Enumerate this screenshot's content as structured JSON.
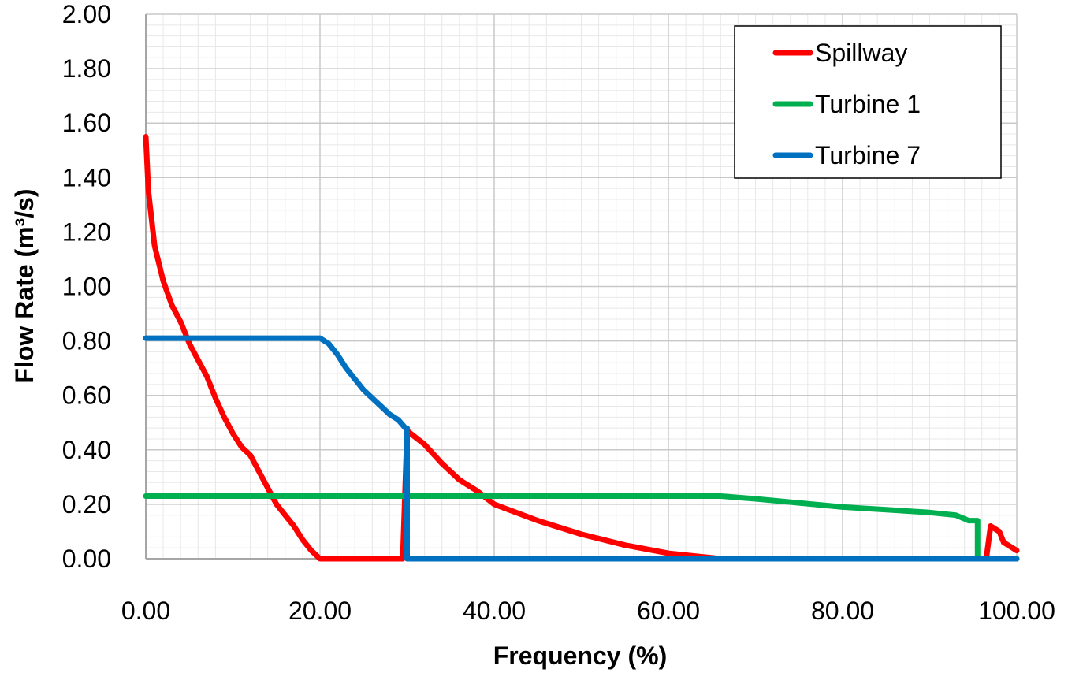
{
  "chart_data": {
    "type": "line",
    "title": "",
    "xlabel": "Frequency (%)",
    "ylabel": "Flow Rate (m³/s)",
    "xlim": [
      0,
      100
    ],
    "ylim": [
      0,
      2.0
    ],
    "grid": true,
    "legend_position": "top-right",
    "x_ticks": [
      "0.00",
      "20.00",
      "40.00",
      "60.00",
      "80.00",
      "100.00"
    ],
    "y_ticks": [
      "0.00",
      "0.20",
      "0.40",
      "0.60",
      "0.80",
      "1.00",
      "1.20",
      "1.40",
      "1.60",
      "1.80",
      "2.00"
    ],
    "series": [
      {
        "name": "Spillway",
        "color": "#FF0000",
        "points": [
          [
            0,
            1.55
          ],
          [
            0.3,
            1.35
          ],
          [
            1,
            1.15
          ],
          [
            2,
            1.02
          ],
          [
            3,
            0.93
          ],
          [
            4,
            0.87
          ],
          [
            5,
            0.79
          ],
          [
            6,
            0.73
          ],
          [
            7,
            0.67
          ],
          [
            8,
            0.59
          ],
          [
            9,
            0.52
          ],
          [
            10,
            0.46
          ],
          [
            11,
            0.41
          ],
          [
            12,
            0.38
          ],
          [
            13,
            0.32
          ],
          [
            14,
            0.26
          ],
          [
            15,
            0.2
          ],
          [
            16,
            0.16
          ],
          [
            17,
            0.12
          ],
          [
            18,
            0.07
          ],
          [
            19,
            0.03
          ],
          [
            20,
            0.0
          ],
          [
            29.5,
            0.0
          ],
          [
            30,
            0.47
          ],
          [
            32,
            0.42
          ],
          [
            34,
            0.35
          ],
          [
            36,
            0.29
          ],
          [
            38,
            0.25
          ],
          [
            40,
            0.2
          ],
          [
            45,
            0.14
          ],
          [
            50,
            0.09
          ],
          [
            55,
            0.05
          ],
          [
            60,
            0.02
          ],
          [
            66,
            0.0
          ],
          [
            96.5,
            0.0
          ],
          [
            97,
            0.12
          ],
          [
            98,
            0.1
          ],
          [
            98.5,
            0.06
          ],
          [
            100,
            0.03
          ]
        ]
      },
      {
        "name": "Turbine 1",
        "color": "#00B050",
        "points": [
          [
            0,
            0.23
          ],
          [
            66,
            0.23
          ],
          [
            70,
            0.22
          ],
          [
            75,
            0.205
          ],
          [
            80,
            0.19
          ],
          [
            85,
            0.18
          ],
          [
            90,
            0.17
          ],
          [
            93,
            0.16
          ],
          [
            94.5,
            0.14
          ],
          [
            95.5,
            0.14
          ],
          [
            95.5,
            0.0
          ],
          [
            100,
            0.0
          ]
        ]
      },
      {
        "name": "Turbine 7",
        "color": "#0070C0",
        "points": [
          [
            0,
            0.81
          ],
          [
            20,
            0.81
          ],
          [
            21,
            0.79
          ],
          [
            22,
            0.75
          ],
          [
            23,
            0.7
          ],
          [
            24,
            0.66
          ],
          [
            25,
            0.62
          ],
          [
            26,
            0.59
          ],
          [
            27,
            0.56
          ],
          [
            28,
            0.53
          ],
          [
            29,
            0.51
          ],
          [
            29.8,
            0.48
          ],
          [
            30,
            0.48
          ],
          [
            30,
            0.0
          ],
          [
            100,
            0.0
          ]
        ]
      }
    ]
  }
}
